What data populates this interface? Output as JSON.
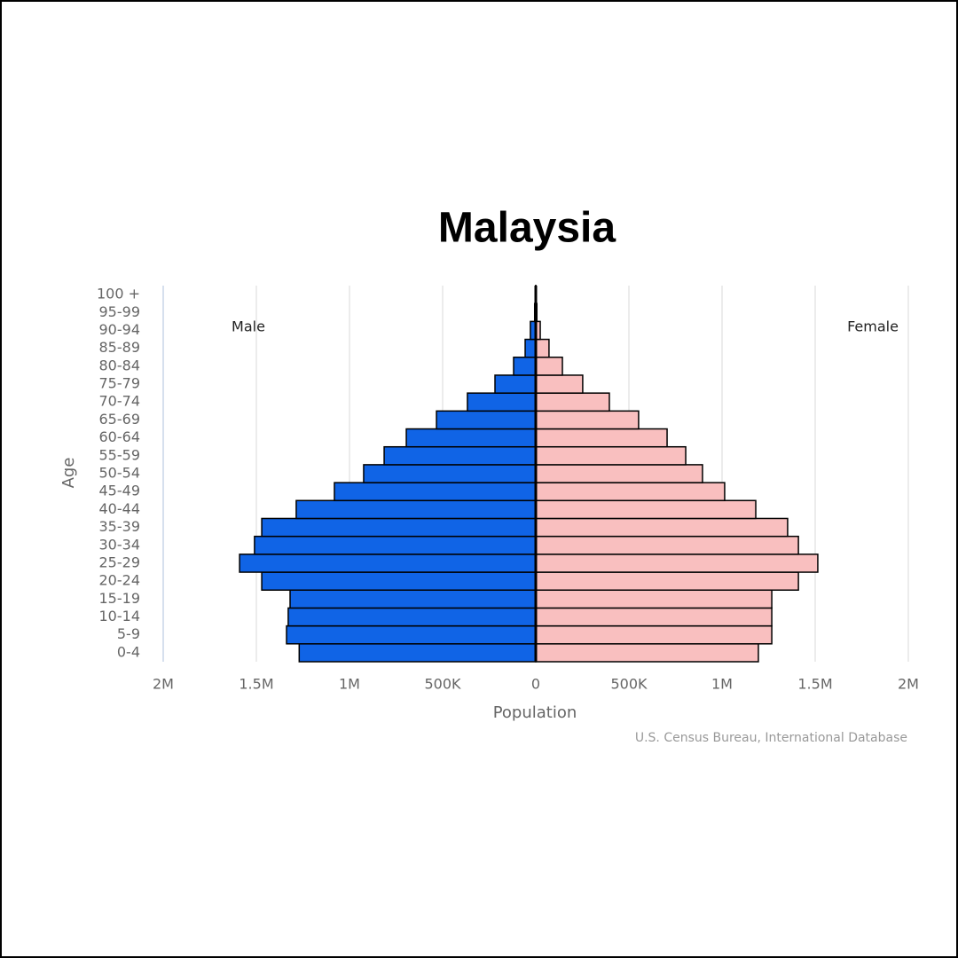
{
  "chart_data": {
    "type": "pyramid",
    "title": "Malaysia",
    "x_label": "Population",
    "y_label": "Age",
    "source": "U.S. Census Bureau, International Database",
    "categories": [
      "0-4",
      "5-9",
      "10-14",
      "15-19",
      "20-24",
      "25-29",
      "30-34",
      "35-39",
      "40-44",
      "45-49",
      "50-54",
      "55-59",
      "60-64",
      "65-69",
      "70-74",
      "75-79",
      "80-84",
      "85-89",
      "90-94",
      "95-99",
      "100 +"
    ],
    "series": [
      {
        "name": "Male",
        "color": "#1064e6",
        "values": [
          -1270000,
          -1338000,
          -1329000,
          -1319000,
          -1471000,
          -1590000,
          -1510000,
          -1471000,
          -1286000,
          -1081000,
          -924000,
          -814000,
          -695000,
          -533000,
          -367000,
          -219000,
          -119000,
          -57000,
          -29000,
          -6000,
          -1000
        ]
      },
      {
        "name": "Female",
        "color": "#f9bfbf",
        "values": [
          1195000,
          1267000,
          1267000,
          1267000,
          1410000,
          1514000,
          1410000,
          1352000,
          1181000,
          1014000,
          895000,
          805000,
          705000,
          552000,
          395000,
          252000,
          143000,
          71000,
          24000,
          6000,
          1000
        ]
      }
    ],
    "xlim": [
      -2000000,
      2000000
    ],
    "xticks": [
      {
        "value": -2000000,
        "label": "2M"
      },
      {
        "value": -1500000,
        "label": "1.5M"
      },
      {
        "value": -1000000,
        "label": "1M"
      },
      {
        "value": -500000,
        "label": "500K"
      },
      0,
      {
        "value": 500000,
        "label": "500K"
      },
      {
        "value": 1000000,
        "label": "1M"
      },
      {
        "value": 1500000,
        "label": "1.5M"
      },
      {
        "value": 2000000,
        "label": "2M"
      }
    ],
    "grid": true
  }
}
